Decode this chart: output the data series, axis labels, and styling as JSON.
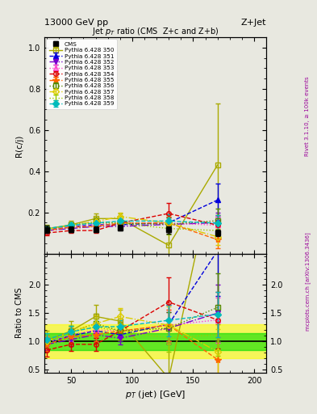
{
  "title_top": "13000 GeV pp",
  "title_right": "Z+Jet",
  "main_title": "Jet $p_T$ ratio (CMS  Z+c and Z+b)",
  "ylabel_main": "R(c/j)",
  "ylabel_ratio": "Ratio to CMS",
  "xlabel": "$p_T$ (jet) [GeV]",
  "right_label_top": "Rivet 3.1.10, ≥ 100k events",
  "right_label_bottom": "mcplots.cern.ch [arXiv:1306.3436]",
  "xlim": [
    28,
    210
  ],
  "ylim_main": [
    0.0,
    1.05
  ],
  "ylim_ratio": [
    0.45,
    2.55
  ],
  "yticks_main": [
    0.2,
    0.4,
    0.6,
    0.8,
    1.0
  ],
  "yticks_ratio": [
    0.5,
    1.0,
    1.5,
    2.0
  ],
  "xticks": [
    50,
    100,
    150,
    200
  ],
  "cms_x": [
    30,
    50,
    70,
    90,
    130,
    170
  ],
  "cms_y": [
    0.118,
    0.118,
    0.118,
    0.125,
    0.115,
    0.1
  ],
  "cms_yerr": [
    0.018,
    0.014,
    0.013,
    0.013,
    0.018,
    0.015
  ],
  "series": [
    {
      "label": "Pythia 6.428 350",
      "color": "#aaaa00",
      "linestyle": "-",
      "marker": "s",
      "markerfill": "none",
      "x": [
        30,
        50,
        70,
        90,
        130,
        170
      ],
      "y": [
        0.12,
        0.14,
        0.17,
        0.17,
        0.04,
        0.43
      ],
      "yerr": [
        0.02,
        0.02,
        0.025,
        0.025,
        0.1,
        0.3
      ]
    },
    {
      "label": "Pythia 6.428 351",
      "color": "#0000dd",
      "linestyle": "--",
      "marker": "^",
      "markerfill": "full",
      "x": [
        30,
        50,
        70,
        90,
        130,
        170
      ],
      "y": [
        0.115,
        0.13,
        0.14,
        0.14,
        0.15,
        0.26
      ],
      "yerr": [
        0.015,
        0.015,
        0.015,
        0.015,
        0.04,
        0.08
      ]
    },
    {
      "label": "Pythia 6.428 352",
      "color": "#7700cc",
      "linestyle": "-.",
      "marker": "v",
      "markerfill": "full",
      "x": [
        30,
        50,
        70,
        90,
        130,
        170
      ],
      "y": [
        0.112,
        0.122,
        0.132,
        0.132,
        0.142,
        0.15
      ],
      "yerr": [
        0.013,
        0.013,
        0.013,
        0.013,
        0.032,
        0.05
      ]
    },
    {
      "label": "Pythia 6.428 353",
      "color": "#ff44cc",
      "linestyle": ":",
      "marker": "^",
      "markerfill": "none",
      "x": [
        30,
        50,
        70,
        90,
        130,
        170
      ],
      "y": [
        0.115,
        0.132,
        0.142,
        0.148,
        0.148,
        0.138
      ],
      "yerr": [
        0.013,
        0.013,
        0.013,
        0.013,
        0.032,
        0.04
      ]
    },
    {
      "label": "Pythia 6.428 354",
      "color": "#dd0000",
      "linestyle": "--",
      "marker": "o",
      "markerfill": "none",
      "x": [
        30,
        50,
        70,
        90,
        130,
        170
      ],
      "y": [
        0.1,
        0.112,
        0.112,
        0.148,
        0.195,
        0.138
      ],
      "yerr": [
        0.013,
        0.013,
        0.013,
        0.02,
        0.05,
        0.05
      ]
    },
    {
      "label": "Pythia 6.428 355",
      "color": "#ff6600",
      "linestyle": "--",
      "marker": "*",
      "markerfill": "full",
      "x": [
        30,
        50,
        70,
        90,
        130,
        170
      ],
      "y": [
        0.112,
        0.128,
        0.132,
        0.148,
        0.148,
        0.068
      ],
      "yerr": [
        0.013,
        0.013,
        0.013,
        0.013,
        0.032,
        0.04
      ]
    },
    {
      "label": "Pythia 6.428 356",
      "color": "#558800",
      "linestyle": ":",
      "marker": "s",
      "markerfill": "none",
      "x": [
        30,
        50,
        70,
        90,
        130,
        170
      ],
      "y": [
        0.118,
        0.138,
        0.155,
        0.148,
        0.142,
        0.16
      ],
      "yerr": [
        0.013,
        0.013,
        0.02,
        0.02,
        0.032,
        0.06
      ]
    },
    {
      "label": "Pythia 6.428 357",
      "color": "#ddcc00",
      "linestyle": "-.",
      "marker": "D",
      "markerfill": "none",
      "x": [
        30,
        50,
        70,
        90,
        130,
        170
      ],
      "y": [
        0.118,
        0.138,
        0.155,
        0.18,
        0.148,
        0.082
      ],
      "yerr": [
        0.013,
        0.013,
        0.018,
        0.018,
        0.038,
        0.04
      ]
    },
    {
      "label": "Pythia 6.428 358",
      "color": "#99cc00",
      "linestyle": ":",
      "marker": "None",
      "markerfill": "none",
      "x": [
        30,
        50,
        70,
        90,
        130,
        170
      ],
      "y": [
        0.118,
        0.138,
        0.148,
        0.148,
        0.122,
        0.112
      ],
      "yerr": [
        0.013,
        0.013,
        0.018,
        0.018,
        0.028,
        0.038
      ]
    },
    {
      "label": "Pythia 6.428 359",
      "color": "#00bbbb",
      "linestyle": "--",
      "marker": "D",
      "markerfill": "full",
      "x": [
        30,
        50,
        70,
        90,
        130,
        170
      ],
      "y": [
        0.122,
        0.138,
        0.148,
        0.158,
        0.158,
        0.148
      ],
      "yerr": [
        0.013,
        0.013,
        0.013,
        0.013,
        0.032,
        0.04
      ]
    }
  ],
  "band_green_low": 0.85,
  "band_green_high": 1.15,
  "band_yellow_low": 0.7,
  "band_yellow_high": 1.3,
  "bg_color": "#e8e8e0"
}
